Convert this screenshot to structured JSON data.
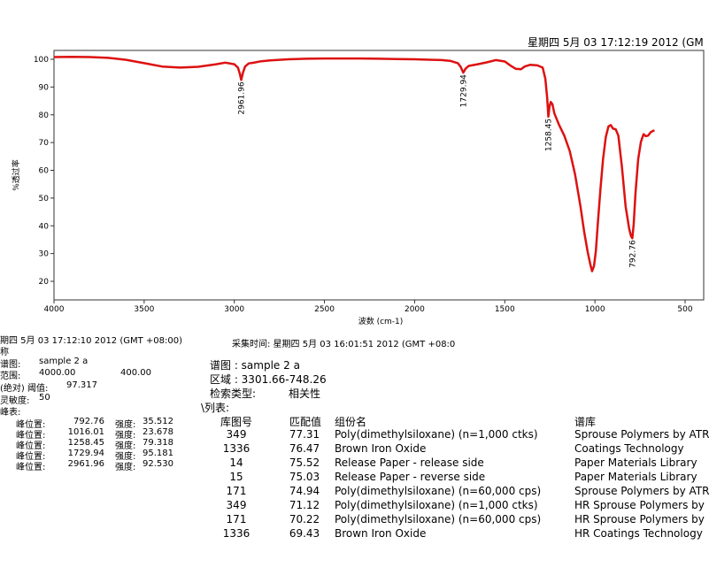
{
  "header": {
    "timestamp": "星期四 5月 03 17:12:19 2012 (GM"
  },
  "chart_data": {
    "type": "line",
    "xlabel": "波数 (cm-1)",
    "ylabel": "%透过率",
    "xlim": [
      4000,
      450
    ],
    "ylim": [
      15,
      102
    ],
    "x_ticks": [
      4000,
      3500,
      3000,
      2500,
      2000,
      1500,
      1000,
      500
    ],
    "y_ticks": [
      20,
      30,
      40,
      50,
      60,
      70,
      80,
      90,
      100
    ],
    "line_color": "#dd1111",
    "series": [
      {
        "points": [
          [
            4000,
            100.8
          ],
          [
            3900,
            100.9
          ],
          [
            3800,
            100.8
          ],
          [
            3700,
            100.5
          ],
          [
            3600,
            99.8
          ],
          [
            3500,
            98.6
          ],
          [
            3400,
            97.4
          ],
          [
            3300,
            97.0
          ],
          [
            3200,
            97.3
          ],
          [
            3100,
            98.2
          ],
          [
            3050,
            98.8
          ],
          [
            3000,
            98.2
          ],
          [
            2980,
            97.0
          ],
          [
            2970,
            95.0
          ],
          [
            2961.96,
            92.53
          ],
          [
            2952,
            95.2
          ],
          [
            2940,
            97.4
          ],
          [
            2920,
            98.5
          ],
          [
            2900,
            98.7
          ],
          [
            2850,
            99.3
          ],
          [
            2800,
            99.6
          ],
          [
            2700,
            100.0
          ],
          [
            2600,
            100.2
          ],
          [
            2500,
            100.3
          ],
          [
            2400,
            100.3
          ],
          [
            2300,
            100.3
          ],
          [
            2200,
            100.2
          ],
          [
            2100,
            100.1
          ],
          [
            2000,
            100.0
          ],
          [
            1900,
            99.8
          ],
          [
            1850,
            99.7
          ],
          [
            1800,
            99.4
          ],
          [
            1760,
            98.6
          ],
          [
            1745,
            97.3
          ],
          [
            1729.94,
            95.18
          ],
          [
            1718,
            96.6
          ],
          [
            1700,
            97.6
          ],
          [
            1650,
            98.2
          ],
          [
            1600,
            98.9
          ],
          [
            1550,
            99.7
          ],
          [
            1500,
            99.2
          ],
          [
            1470,
            97.8
          ],
          [
            1440,
            96.6
          ],
          [
            1410,
            96.4
          ],
          [
            1390,
            97.4
          ],
          [
            1360,
            98.0
          ],
          [
            1320,
            97.8
          ],
          [
            1290,
            97.0
          ],
          [
            1275,
            93.0
          ],
          [
            1265,
            86.0
          ],
          [
            1258.45,
            79.32
          ],
          [
            1252,
            83.0
          ],
          [
            1245,
            84.6
          ],
          [
            1236,
            83.8
          ],
          [
            1225,
            80.5
          ],
          [
            1200,
            76.5
          ],
          [
            1170,
            72.5
          ],
          [
            1140,
            67.0
          ],
          [
            1110,
            58.5
          ],
          [
            1080,
            47.0
          ],
          [
            1060,
            38.0
          ],
          [
            1040,
            30.5
          ],
          [
            1025,
            26.0
          ],
          [
            1016.01,
            23.68
          ],
          [
            1005,
            25.5
          ],
          [
            995,
            31.0
          ],
          [
            985,
            40.0
          ],
          [
            970,
            53.0
          ],
          [
            955,
            64.0
          ],
          [
            940,
            72.0
          ],
          [
            925,
            75.8
          ],
          [
            912,
            76.3
          ],
          [
            900,
            75.0
          ],
          [
            885,
            74.8
          ],
          [
            870,
            72.5
          ],
          [
            850,
            61.0
          ],
          [
            830,
            47.0
          ],
          [
            810,
            39.0
          ],
          [
            800,
            36.3
          ],
          [
            792.76,
            35.51
          ],
          [
            785,
            40.5
          ],
          [
            775,
            52.0
          ],
          [
            760,
            64.0
          ],
          [
            745,
            70.3
          ],
          [
            730,
            73.0
          ],
          [
            718,
            72.3
          ],
          [
            705,
            72.5
          ],
          [
            690,
            73.8
          ],
          [
            670,
            74.4
          ]
        ]
      }
    ],
    "peak_labels": [
      {
        "x": 2961.96,
        "y": 92.53,
        "label": "2961.96"
      },
      {
        "x": 1729.94,
        "y": 95.18,
        "label": "1729.94"
      },
      {
        "x": 1258.45,
        "y": 79.32,
        "label": "1258.45"
      },
      {
        "x": 792.76,
        "y": 35.51,
        "label": "792.76"
      }
    ],
    "grid": false
  },
  "info_left": {
    "timestamp": "期四 5月 03 17:12:10 2012 (GMT +08:00)",
    "line2": "称",
    "spectrum_label": "谱图:",
    "spectrum_value": "sample 2 a",
    "range_label": "范围:",
    "range_from": "4000.00",
    "range_to": "400.00",
    "threshold_label": "(绝对) 阈值:",
    "threshold_value": "97.317",
    "sensitivity_label": "灵敏度:",
    "sensitivity_value": "50",
    "peaks_label": "峰表:",
    "peaks": [
      {
        "pos_label": "峰位置:",
        "pos": "792.76",
        "int_label": "强度:",
        "int": "35.512"
      },
      {
        "pos_label": "峰位置:",
        "pos": "1016.01",
        "int_label": "强度:",
        "int": "23.678"
      },
      {
        "pos_label": "峰位置:",
        "pos": "1258.45",
        "int_label": "强度:",
        "int": "79.318"
      },
      {
        "pos_label": "峰位置:",
        "pos": "1729.94",
        "int_label": "强度:",
        "int": "95.181"
      },
      {
        "pos_label": "峰位置:",
        "pos": "2961.96",
        "int_label": "强度:",
        "int": "92.530"
      }
    ]
  },
  "info_right": {
    "acq_time": "采集时间: 星期四 5月 03 16:01:51 2012 (GMT +08:0",
    "spectrum_line": "谱图 : sample 2 a",
    "region_line": "区域 : 3301.66-748.26",
    "search_type_label": "检索类型:",
    "search_type_value": "相关性",
    "list_label": "\\列表:",
    "headers": {
      "index": "库图号",
      "match": "匹配值",
      "component": "组份名",
      "library": "谱库"
    },
    "rows": [
      {
        "index": "349",
        "match": "77.31",
        "component": "Poly(dimethylsiloxane) (n=1,000 ctks)",
        "library": "Sprouse Polymers by ATR"
      },
      {
        "index": "1336",
        "match": "76.47",
        "component": "Brown Iron Oxide",
        "library": "Coatings Technology"
      },
      {
        "index": "14",
        "match": "75.52",
        "component": "Release Paper - release side",
        "library": "Paper Materials Library"
      },
      {
        "index": "15",
        "match": "75.03",
        "component": "Release Paper - reverse side",
        "library": "Paper Materials Library"
      },
      {
        "index": "171",
        "match": "74.94",
        "component": "Poly(dimethylsiloxane) (n=60,000 cps)",
        "library": "Sprouse Polymers by ATR"
      },
      {
        "index": "349",
        "match": "71.12",
        "component": "Poly(dimethylsiloxane) (n=1,000 ctks)",
        "library": "HR Sprouse Polymers by"
      },
      {
        "index": "171",
        "match": "70.22",
        "component": "Poly(dimethylsiloxane) (n=60,000 cps)",
        "library": "HR Sprouse Polymers by"
      },
      {
        "index": "1336",
        "match": "69.43",
        "component": "Brown Iron Oxide",
        "library": "HR Coatings Technology"
      }
    ]
  }
}
